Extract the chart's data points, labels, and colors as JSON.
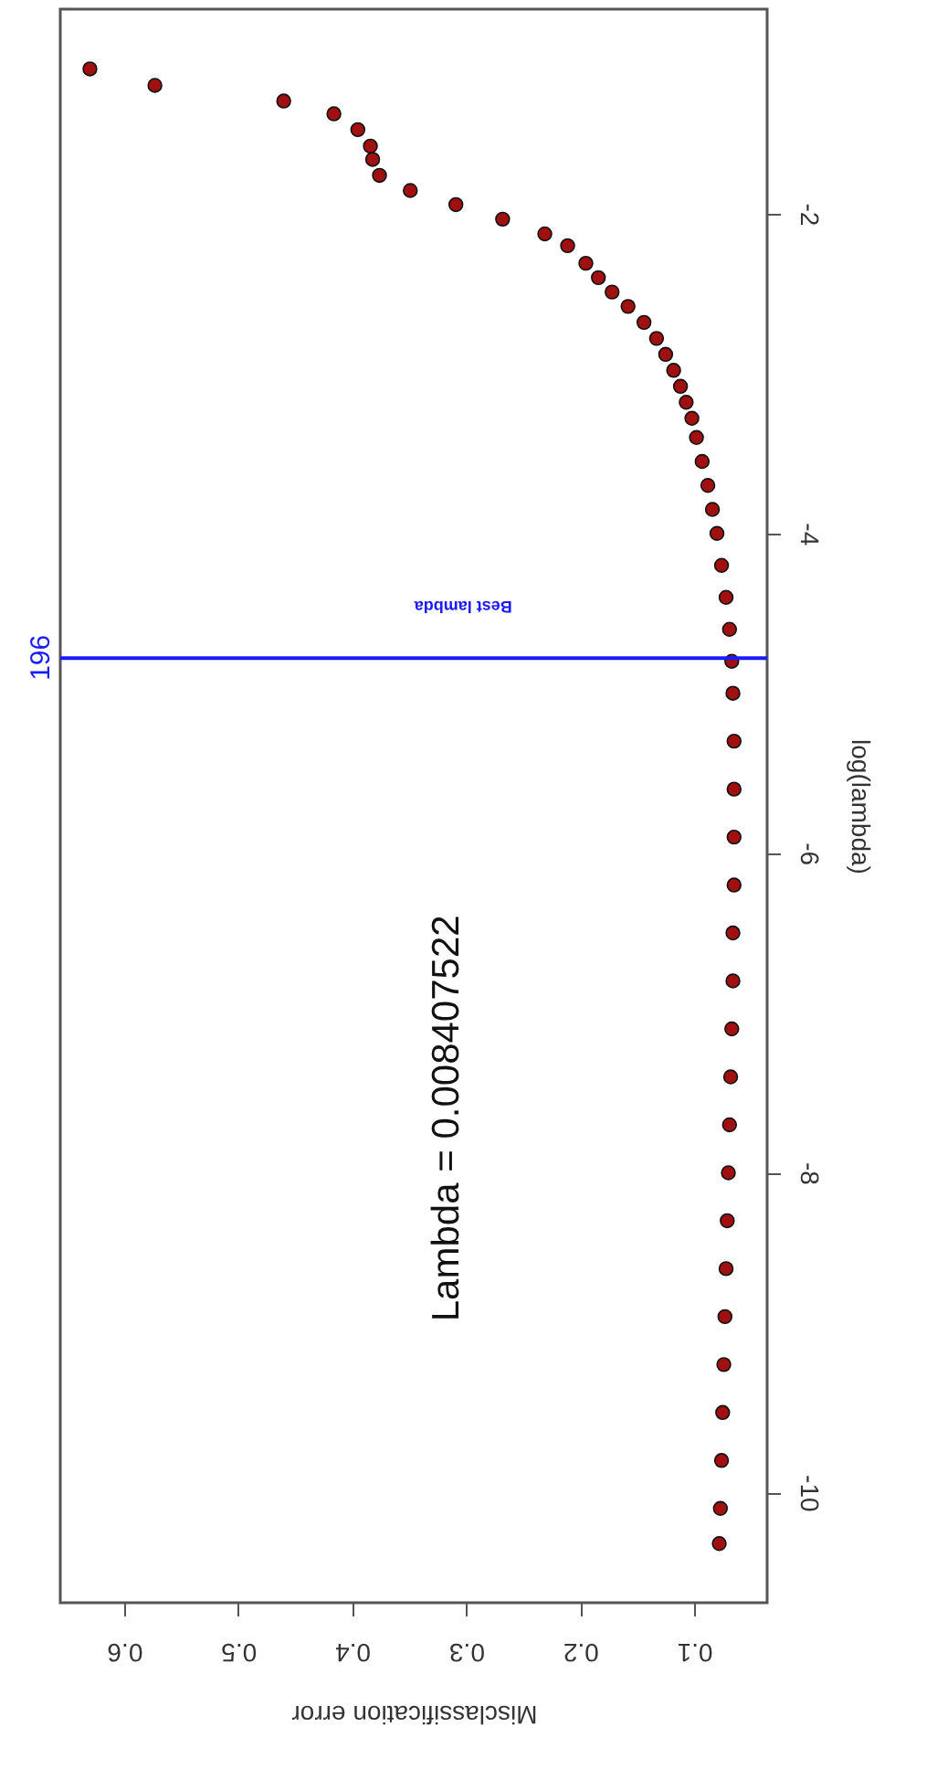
{
  "chart_data": {
    "type": "scatter",
    "orientation": "horizontal",
    "xlabel": "Misclassification error",
    "ylabel": "log(lambda)",
    "annotations": [
      "Lambda = 0.008407522",
      "196"
    ],
    "x": [
      -1.094,
      -1.197,
      -1.295,
      -1.375,
      -1.474,
      -1.577,
      -1.66,
      -1.76,
      -1.855,
      -1.943,
      -2.034,
      -2.126,
      -2.2,
      -2.31,
      -2.4,
      -2.49,
      -2.58,
      -2.68,
      -2.78,
      -2.88,
      -2.98,
      -3.08,
      -3.18,
      -3.28,
      -3.4,
      -3.55,
      -3.7,
      -3.85,
      -4.0,
      -4.2,
      -4.4,
      -4.6,
      -4.8,
      -5.0,
      -5.3,
      -5.6,
      -5.9,
      -6.2,
      -6.5,
      -6.8,
      -7.1,
      -7.4,
      -7.7,
      -8.0,
      -8.3,
      -8.6,
      -8.9,
      -9.2,
      -9.5,
      -9.8,
      -10.1,
      -10.32
    ],
    "series": [
      {
        "color": "#a01010",
        "values": [
          0.63,
          0.573,
          0.46,
          0.416,
          0.395,
          0.384,
          0.382,
          0.376,
          0.349,
          0.309,
          0.268,
          0.231,
          0.211,
          0.195,
          0.184,
          0.172,
          0.158,
          0.144,
          0.133,
          0.125,
          0.118,
          0.112,
          0.107,
          0.102,
          0.098,
          0.093,
          0.088,
          0.084,
          0.08,
          0.076,
          0.072,
          0.069,
          0.067,
          0.066,
          0.065,
          0.065,
          0.065,
          0.065,
          0.066,
          0.066,
          0.067,
          0.068,
          0.069,
          0.07,
          0.071,
          0.072,
          0.073,
          0.074,
          0.075,
          0.076,
          0.077,
          0.078
        ],
        "errors": [
          0.004,
          0.004,
          0.004,
          0.004,
          0.004,
          0.004,
          0.004,
          0.004,
          0.004,
          0.004,
          0.004,
          0.004,
          0.004,
          0.004,
          0.004,
          0.004,
          0.004,
          0.004,
          0.004,
          0.004,
          0.004,
          0.004,
          0.004,
          0.004,
          0.004,
          0.004,
          0.004,
          0.004,
          0.004,
          0.004,
          0.004,
          0.004,
          0.004,
          0.004,
          0.004,
          0.004,
          0.004,
          0.004,
          0.004,
          0.004,
          0.004,
          0.004,
          0.004,
          0.004,
          0.004,
          0.004,
          0.004,
          0.004,
          0.004,
          0.004,
          0.004,
          0.004
        ]
      }
    ],
    "xlim": [
      0.656,
      0.036
    ],
    "xticks": [
      0.1,
      0.2,
      0.3,
      0.4,
      0.5,
      0.6
    ],
    "ylim": [
      -10.69,
      -0.72
    ],
    "yticks": [
      -10,
      -8,
      -6,
      -4,
      -2
    ],
    "ref_lines": [
      {
        "axis": "y",
        "value": -4.78,
        "label": "Best lambda",
        "color": "#1a1aff"
      }
    ],
    "marker": "circle",
    "grid": false
  }
}
